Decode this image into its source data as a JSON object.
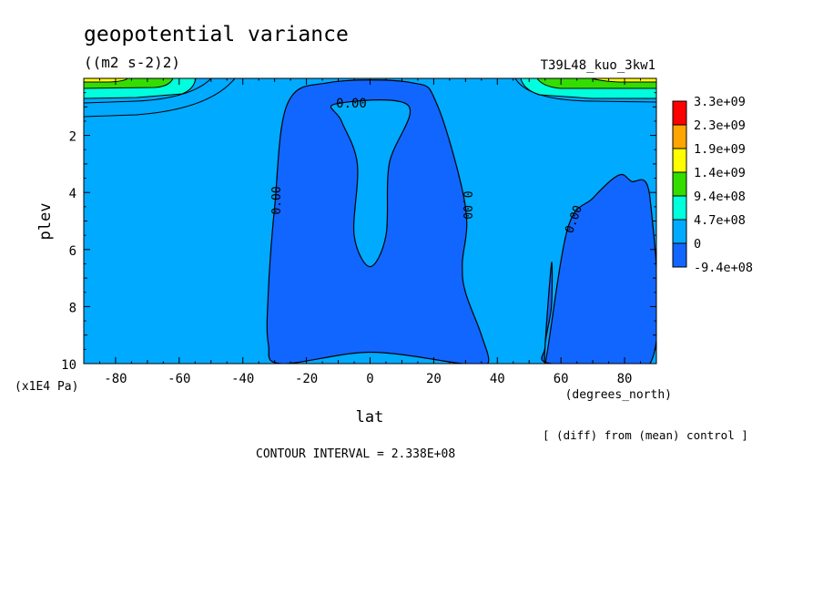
{
  "chart_data": {
    "type": "contour",
    "title": "geopotential variance",
    "units": "((m2 s-2)2)",
    "run_label": "T39L48_kuo_3kw1",
    "xlabel": "lat",
    "x_units": "(degrees_north)",
    "ylabel": "plev",
    "y_units": "(x1E4 Pa)",
    "xlim": [
      -90,
      90
    ],
    "ylim": [
      10,
      0
    ],
    "x_ticks": [
      -80,
      -60,
      -40,
      -20,
      0,
      20,
      40,
      60,
      80
    ],
    "y_ticks": [
      2,
      4,
      6,
      8,
      10
    ],
    "contour_label": "0.00",
    "contour_interval_text": "CONTOUR INTERVAL = 2.338E+08",
    "diff_note": "[ (diff) from (mean) control ]",
    "legend": {
      "labels": [
        "3.3e+09",
        "2.3e+09",
        "1.9e+09",
        "1.4e+09",
        "9.4e+08",
        "4.7e+08",
        "0",
        "-9.4e+08"
      ],
      "colors": [
        "#ff0000",
        "#ffa500",
        "#ffff00",
        "#33dd00",
        "#00ffdd",
        "#00aaff",
        "#1166ff"
      ]
    },
    "regions": [
      {
        "level": "below 0",
        "color": "#1166ff",
        "lat_pts": [
          -13,
          13,
          21,
          30,
          29,
          30,
          35,
          37,
          29,
          0,
          -28,
          -32,
          -32,
          -30,
          -26
        ],
        "plev_pts": [
          0.15,
          0.15,
          0.9,
          4.5,
          6.5,
          7.5,
          9,
          10,
          10,
          9.6,
          10,
          9.3,
          7.5,
          4.5,
          0.9
        ]
      },
      {
        "level": "0 to 4.7e+08",
        "color": "#00aaff",
        "lat_pts": [
          -11,
          12,
          6,
          5,
          0,
          -5,
          -4,
          -9
        ],
        "plev_pts": [
          0.9,
          0.95,
          3,
          5.5,
          6.6,
          5.5,
          3,
          1.5
        ]
      },
      {
        "level": "below 0",
        "color": "#1166ff",
        "lat_pts": [
          55,
          62,
          70,
          78,
          82,
          88,
          88,
          57,
          55,
          57,
          57
        ],
        "plev_pts": [
          10,
          5.3,
          4.2,
          3.4,
          3.6,
          4.2,
          10,
          10,
          9.4,
          8,
          6.5
        ]
      }
    ]
  }
}
